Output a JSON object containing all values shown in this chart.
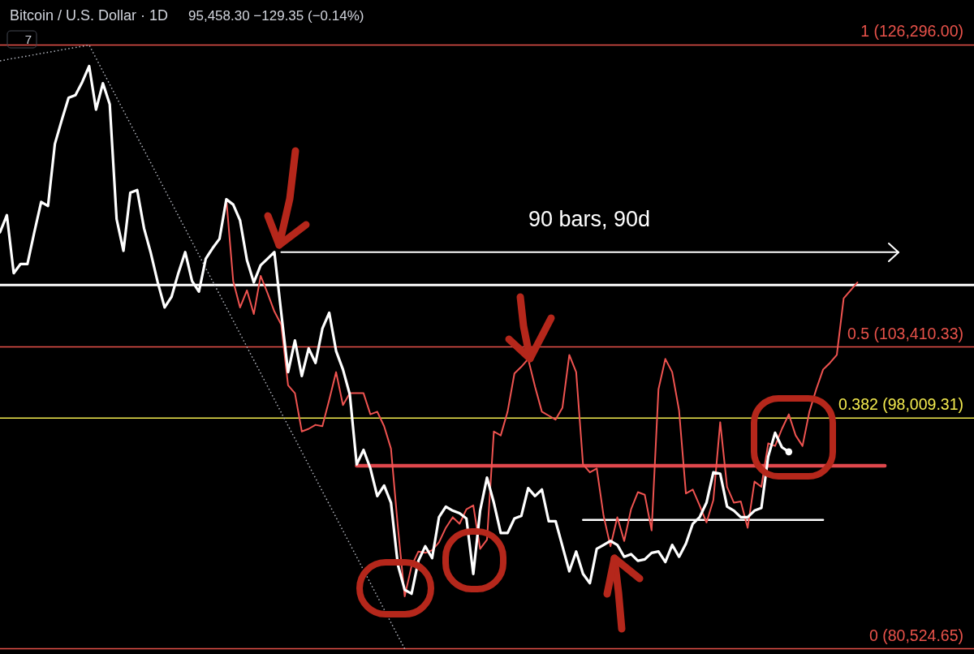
{
  "chart_data": {
    "type": "line",
    "title": "Bitcoin / U.S. Dollar · 1D",
    "subtitle": "95,458.30 −129.35 (−0.14%)",
    "annotations": [
      "7",
      "90 bars, 90d"
    ],
    "ylim": [
      80130,
      129710
    ],
    "categories": [
      null,
      null,
      null,
      null,
      null,
      null,
      null,
      null,
      null,
      null,
      null,
      null,
      null,
      null,
      null,
      null,
      null,
      null,
      null,
      null,
      null,
      null,
      null,
      null,
      null,
      null,
      null,
      null,
      null,
      null,
      null,
      null,
      null,
      null,
      null,
      null,
      null,
      null,
      null,
      null,
      null,
      null,
      null,
      null,
      null,
      null,
      null,
      null,
      null,
      null,
      null,
      null,
      null,
      null,
      null,
      null,
      null,
      null,
      null,
      null,
      null,
      null,
      null,
      null,
      null,
      null,
      null,
      null,
      null,
      null,
      null,
      null,
      null,
      null,
      null,
      null,
      null,
      null,
      null,
      null,
      null,
      null,
      null,
      null,
      null,
      null,
      null,
      null,
      null,
      null,
      null,
      null,
      null,
      null,
      null,
      null,
      null,
      null,
      null,
      null,
      null,
      null,
      null,
      null,
      null,
      null,
      null,
      null,
      null,
      null,
      null,
      null,
      null,
      null,
      null,
      null,
      null,
      null,
      null,
      null,
      null,
      null,
      null,
      null,
      null,
      null,
      null,
      null,
      null,
      null,
      null,
      null,
      null,
      null,
      null,
      null,
      null,
      null,
      null,
      null,
      null,
      null,
      null
    ],
    "ref_lines": [
      {
        "axis": "y",
        "value": 126296,
        "label": "1 (126,296.00)",
        "color": "#e8524a"
      },
      {
        "axis": "y",
        "value": 108100,
        "color": "#ffffff"
      },
      {
        "axis": "y",
        "value": 103410.33,
        "label": "0.5 (103,410.33)",
        "color": "#e8524a"
      },
      {
        "axis": "y",
        "value": 98009.31,
        "label": "0.382 (98,009.31)",
        "color": "#f2e94e"
      },
      {
        "axis": "y",
        "value": 80524.65,
        "label": "0 (80,524.65)",
        "color": "#e8524a"
      }
    ],
    "series": [
      {
        "color": "#b2b5be",
        "line_style": "dotted",
        "values": [
          125100,
          null,
          null,
          null,
          null,
          null,
          null,
          null,
          null,
          null,
          null,
          null,
          null,
          126296,
          null,
          null,
          null,
          null,
          null,
          null,
          null,
          null,
          null,
          null,
          null,
          null,
          null,
          null,
          null,
          null,
          null,
          null,
          null,
          null,
          null,
          null,
          null,
          null,
          null,
          null,
          null,
          null,
          null,
          null,
          null,
          null,
          null,
          null,
          null,
          null,
          null,
          null,
          null,
          null,
          null,
          null,
          null,
          null,
          null,
          80524.65,
          null,
          null,
          null,
          null,
          null,
          null,
          null,
          null,
          null,
          null,
          null,
          null,
          null,
          null,
          null,
          null,
          null,
          null,
          null,
          null,
          null,
          null,
          null,
          null,
          null,
          null,
          null,
          null,
          null,
          null,
          null,
          null,
          null,
          null,
          null,
          null,
          null,
          null,
          null,
          null,
          null,
          null,
          null,
          null,
          null,
          null,
          null,
          null,
          null,
          null,
          null,
          null,
          null,
          null,
          null,
          null,
          null,
          null,
          null,
          null,
          null,
          null,
          null,
          null,
          null,
          null,
          null,
          null,
          null,
          null,
          null,
          null,
          null,
          null,
          null,
          null,
          null,
          null,
          null,
          null,
          null,
          null,
          null
        ]
      },
      {
        "color": "#e0474c",
        "values": [
          null,
          null,
          null,
          null,
          null,
          null,
          null,
          null,
          null,
          null,
          null,
          null,
          null,
          null,
          null,
          null,
          null,
          null,
          null,
          null,
          null,
          null,
          null,
          null,
          null,
          null,
          null,
          null,
          null,
          null,
          null,
          null,
          null,
          null,
          null,
          null,
          null,
          null,
          null,
          null,
          null,
          null,
          null,
          null,
          null,
          null,
          null,
          null,
          null,
          null,
          null,
          null,
          94400,
          94400,
          94400,
          94400,
          94400,
          94400,
          94400,
          94400,
          94400,
          94400,
          94400,
          94400,
          94400,
          94400,
          94400,
          94400,
          94400,
          94400,
          94400,
          94400,
          94400,
          94400,
          94400,
          94400,
          94400,
          94400,
          94400,
          94400,
          94400,
          94400,
          94400,
          94400,
          94400,
          94400,
          94400,
          94400,
          94400,
          94400,
          94400,
          94400,
          94400,
          94400,
          94400,
          94400,
          94400,
          94400,
          94400,
          94400,
          94400,
          94400,
          94400,
          94400,
          94400,
          94400,
          94400,
          94400,
          94400,
          94400,
          94400,
          94400,
          94400,
          94400,
          94400,
          94400,
          94400,
          94400,
          94400,
          94400,
          94400,
          94400,
          94400,
          94400,
          94400,
          94400,
          94400,
          94400,
          94400,
          94400,
          null,
          null,
          null,
          null,
          null,
          null,
          null,
          null,
          null,
          null,
          null,
          null,
          null
        ]
      },
      {
        "color": "#ffffff",
        "values": [
          null,
          null,
          null,
          null,
          null,
          null,
          null,
          null,
          null,
          null,
          null,
          null,
          null,
          null,
          null,
          null,
          null,
          null,
          null,
          null,
          null,
          null,
          null,
          null,
          null,
          null,
          null,
          null,
          null,
          null,
          null,
          null,
          null,
          null,
          null,
          null,
          null,
          null,
          null,
          null,
          null,
          null,
          null,
          null,
          null,
          null,
          null,
          null,
          null,
          null,
          null,
          null,
          null,
          null,
          null,
          null,
          null,
          null,
          null,
          null,
          null,
          null,
          null,
          null,
          null,
          null,
          null,
          null,
          null,
          null,
          null,
          null,
          null,
          null,
          null,
          null,
          null,
          null,
          null,
          null,
          null,
          null,
          null,
          null,
          null,
          90300,
          90300,
          90300,
          90300,
          90300,
          90300,
          90300,
          90300,
          90300,
          90300,
          90300,
          90300,
          90300,
          90300,
          90300,
          90300,
          90300,
          90300,
          90300,
          90300,
          90300,
          90300,
          90300,
          90300,
          90300,
          90300,
          90300,
          90300,
          90300,
          90300,
          90300,
          90300,
          90300,
          90300,
          90300,
          90300,
          null,
          null,
          null,
          null,
          null,
          null,
          null,
          null,
          null,
          null,
          null,
          null,
          null,
          null,
          null,
          null,
          null,
          null,
          null,
          null,
          null,
          null
        ]
      },
      {
        "color": "#ffffff",
        "values": [
          null,
          null,
          null,
          null,
          null,
          null,
          null,
          null,
          null,
          null,
          null,
          null,
          null,
          null,
          null,
          null,
          null,
          null,
          null,
          null,
          null,
          null,
          null,
          null,
          null,
          null,
          null,
          null,
          null,
          null,
          null,
          null,
          null,
          null,
          null,
          null,
          null,
          null,
          null,
          null,
          null,
          110600,
          110600,
          110600,
          110600,
          110600,
          110600,
          110600,
          110600,
          110600,
          110600,
          110600,
          110600,
          110600,
          110600,
          110600,
          110600,
          110600,
          110600,
          110600,
          110600,
          110600,
          110600,
          110600,
          110600,
          110600,
          110600,
          110600,
          110600,
          110600,
          110600,
          110600,
          110600,
          110600,
          110600,
          110600,
          110600,
          110600,
          110600,
          110600,
          110600,
          110600,
          110600,
          110600,
          110600,
          110600,
          110600,
          110600,
          110600,
          110600,
          110600,
          110600,
          110600,
          110600,
          110600,
          110600,
          110600,
          110600,
          110600,
          110600,
          110600,
          110600,
          110600,
          110600,
          110600,
          110600,
          110600,
          110600,
          110600,
          110600,
          110600,
          110600,
          110600,
          110600,
          110600,
          110600,
          110600,
          110600,
          110600,
          110600,
          110600,
          110600,
          110600,
          110600,
          110600,
          110600,
          110600,
          110600,
          110600,
          110600,
          110600,
          110600,
          null,
          null,
          null,
          null,
          null,
          null,
          null,
          null,
          null,
          null,
          null
        ]
      },
      {
        "color": "#ef5350",
        "values": [
          null,
          null,
          null,
          null,
          null,
          null,
          null,
          null,
          null,
          null,
          null,
          null,
          null,
          null,
          null,
          null,
          null,
          null,
          null,
          null,
          null,
          null,
          null,
          null,
          null,
          null,
          null,
          null,
          null,
          null,
          null,
          null,
          null,
          114600,
          108400,
          106400,
          107700,
          105900,
          108800,
          107500,
          106100,
          105100,
          100500,
          99900,
          97000,
          97200,
          97500,
          97400,
          99400,
          101500,
          99000,
          99900,
          99900,
          99900,
          98300,
          98500,
          97400,
          95700,
          89800,
          84500,
          86800,
          87900,
          87800,
          88000,
          88600,
          89700,
          90500,
          90000,
          91100,
          91400,
          88100,
          88800,
          97000,
          96700,
          98500,
          101400,
          101900,
          102500,
          100400,
          98500,
          98200,
          97900,
          98800,
          102800,
          101500,
          94500,
          93900,
          94200,
          90600,
          88300,
          90500,
          88700,
          91100,
          92400,
          92200,
          89500,
          100200,
          102500,
          101500,
          98600,
          92300,
          92600,
          91400,
          90100,
          91800,
          97700,
          92800,
          91600,
          91700,
          89700,
          93200,
          92800,
          96100,
          95900,
          97200,
          98300,
          96700,
          95900,
          98500,
          100200,
          101700,
          102200,
          102800,
          107100,
          107700,
          108300,
          null,
          null,
          null,
          null,
          null,
          null,
          null,
          null,
          null,
          null,
          null,
          null,
          null,
          null,
          null,
          null,
          null
        ]
      },
      {
        "color": "#ffffff",
        "values": [
          112100,
          113400,
          109000,
          109700,
          109700,
          112100,
          114400,
          114100,
          118800,
          120600,
          122300,
          122500,
          123500,
          124700,
          121400,
          123400,
          121800,
          113100,
          110700,
          115100,
          115300,
          112400,
          110500,
          108300,
          106400,
          107200,
          109000,
          110600,
          108400,
          107600,
          110100,
          110900,
          111600,
          114600,
          114200,
          113000,
          110000,
          108300,
          109600,
          110100,
          110600,
          106000,
          101500,
          103900,
          101200,
          103300,
          102200,
          104800,
          106000,
          103100,
          101700,
          99800,
          94500,
          95600,
          94200,
          92100,
          92900,
          91600,
          86900,
          85000,
          84700,
          87200,
          88300,
          87400,
          90500,
          91300,
          91000,
          90800,
          90400,
          86200,
          91000,
          93500,
          91600,
          89300,
          89300,
          90400,
          90600,
          92700,
          92100,
          92600,
          90200,
          90200,
          88300,
          86400,
          87900,
          86200,
          85500,
          88100,
          88400,
          88700,
          88400,
          87500,
          87700,
          87200,
          87300,
          87800,
          87900,
          87100,
          88400,
          87500,
          88500,
          90000,
          90500,
          91600,
          93900,
          93800,
          91300,
          91000,
          90500,
          90500,
          91000,
          91200,
          95100,
          96900,
          95800,
          95458.3,
          null,
          null,
          null,
          null,
          null,
          null,
          null,
          null,
          null,
          null,
          null,
          null,
          null,
          null,
          null,
          null,
          null,
          null,
          null,
          null,
          null,
          null,
          null,
          null,
          null,
          null,
          null
        ]
      }
    ]
  }
}
